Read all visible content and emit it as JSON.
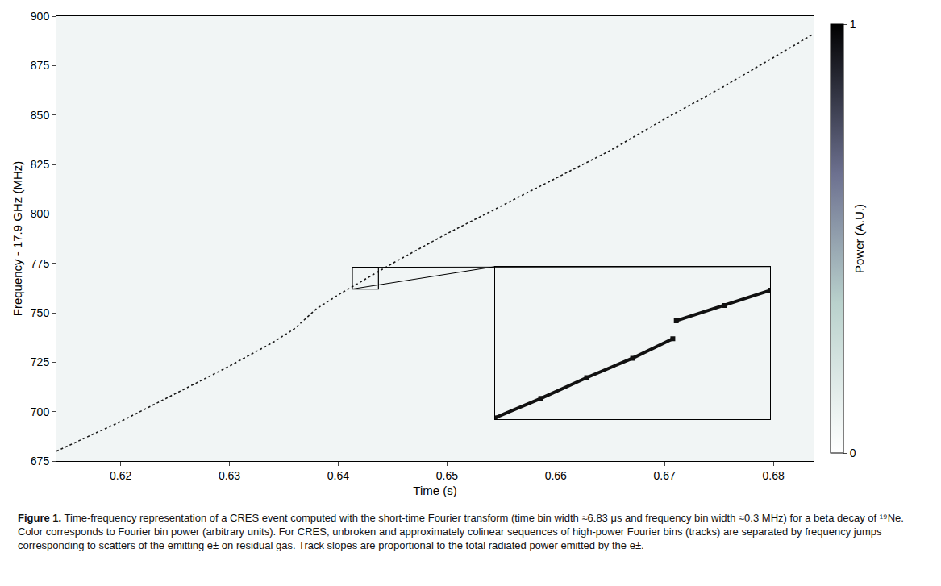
{
  "chart_data": [
    {
      "type": "line",
      "x": [
        0.6141,
        0.62,
        0.625,
        0.63,
        0.634,
        0.636,
        0.638,
        0.64,
        0.6425,
        0.645,
        0.65,
        0.655,
        0.66,
        0.665,
        0.67,
        0.675,
        0.68,
        0.6837
      ],
      "values": [
        680,
        695,
        709,
        723,
        735,
        742,
        752,
        759,
        767,
        775,
        790,
        804,
        818,
        832,
        848,
        863,
        879,
        891
      ],
      "xlabel": "Time (s)",
      "ylabel": "Frequency - 17.9 GHz (MHz)",
      "xlim": [
        0.6141,
        0.6837
      ],
      "ylim": [
        675,
        900
      ],
      "xticks": [
        0.62,
        0.63,
        0.64,
        0.65,
        0.66,
        0.67,
        0.68
      ],
      "yticks": [
        675,
        700,
        725,
        750,
        775,
        800,
        825,
        850,
        875,
        900
      ],
      "color": "#1a1a1a",
      "line_style": "dotted",
      "grid": false,
      "colorbar": {
        "label": "Power (A.U.)",
        "range": [
          0,
          1
        ],
        "ticks": [
          0,
          1
        ]
      }
    },
    {
      "type": "line",
      "x": [
        0.6413,
        0.6417,
        0.6421,
        0.6425,
        0.64285,
        0.64286,
        0.64288,
        0.6433,
        0.6437
      ],
      "values": [
        762.1,
        763.5,
        765.0,
        766.4,
        767.8,
        null,
        769.1,
        770.2,
        771.3
      ],
      "xlim": [
        0.6413,
        0.6437
      ],
      "ylim": [
        762,
        773
      ],
      "tick_labels": false,
      "marker": "square",
      "color": "#111111"
    }
  ],
  "caption_label": "Figure 1.",
  "caption": "Time-frequency representation of a CRES event computed with the short-time Fourier transform (time bin width ≈6.83 μs and frequency bin width ≈0.3 MHz) for a beta decay of ¹⁹Ne. Color corresponds to Fourier bin power (arbitrary units). For CRES, unbroken and approximately colinear sequences of high-power Fourier bins (tracks) are separated by frequency jumps corresponding to scatters of the emitting e± on residual gas. Track slopes are proportional to the total radiated power emitted by the e±."
}
